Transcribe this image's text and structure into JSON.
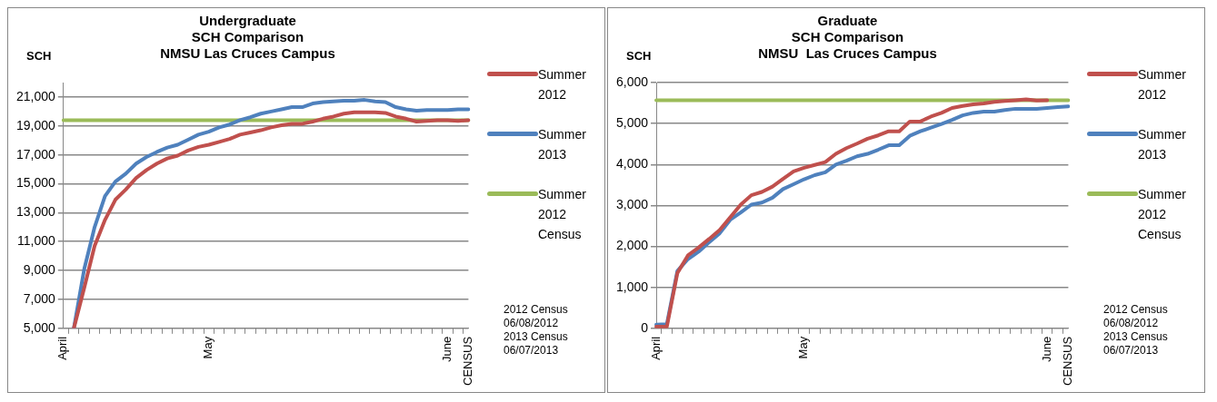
{
  "chart_data": [
    {
      "type": "line",
      "title": "Undergraduate\nSCH Comparison\nNMSU Las Cruces Campus",
      "ylabel": "SCH",
      "categories": [
        "April",
        null,
        null,
        null,
        null,
        null,
        null,
        null,
        null,
        null,
        null,
        null,
        null,
        null,
        "May",
        null,
        null,
        null,
        null,
        null,
        null,
        null,
        null,
        null,
        null,
        null,
        null,
        null,
        null,
        null,
        null,
        null,
        null,
        null,
        null,
        null,
        null,
        "June",
        null,
        "CENSUS"
      ],
      "series": [
        {
          "name": "Summer 2012",
          "color": "#c0504d",
          "values": [
            null,
            5000,
            7800,
            10700,
            12500,
            13900,
            14600,
            15400,
            15950,
            16400,
            16750,
            16950,
            17300,
            17550,
            17700,
            17900,
            18100,
            18400,
            18550,
            18700,
            18900,
            19050,
            19150,
            19150,
            19300,
            19500,
            19650,
            19850,
            19950,
            19950,
            19950,
            19900,
            19650,
            19500,
            19300,
            19350,
            19400,
            19400,
            19350,
            19400
          ]
        },
        {
          "name": "Summer 2013",
          "color": "#4f81bd",
          "values": [
            null,
            5000,
            9100,
            12000,
            14150,
            15150,
            15700,
            16400,
            16850,
            17200,
            17500,
            17700,
            18050,
            18400,
            18600,
            18900,
            19100,
            19400,
            19600,
            19850,
            20000,
            20150,
            20300,
            20300,
            20550,
            20650,
            20700,
            20750,
            20750,
            20800,
            20700,
            20650,
            20300,
            20150,
            20050,
            20100,
            20100,
            20100,
            20150,
            20150
          ]
        },
        {
          "name": "Summer 2012 Census",
          "color": "#9bbb59",
          "values": [
            19400,
            19400,
            19400,
            19400,
            19400,
            19400,
            19400,
            19400,
            19400,
            19400,
            19400,
            19400,
            19400,
            19400,
            19400,
            19400,
            19400,
            19400,
            19400,
            19400,
            19400,
            19400,
            19400,
            19400,
            19400,
            19400,
            19400,
            19400,
            19400,
            19400,
            19400,
            19400,
            19400,
            19400,
            19400,
            19400,
            19400,
            19400,
            19400,
            19400
          ]
        }
      ],
      "ylim": [
        5000,
        22000
      ],
      "yticks": [
        {
          "value": 5000,
          "label": "5,000"
        },
        {
          "value": 7000,
          "label": "7,000"
        },
        {
          "value": 9000,
          "label": "9,000"
        },
        {
          "value": 11000,
          "label": "11,000"
        },
        {
          "value": 13000,
          "label": "13,000"
        },
        {
          "value": 15000,
          "label": "15,000"
        },
        {
          "value": 17000,
          "label": "17,000"
        },
        {
          "value": 19000,
          "label": "19,000"
        },
        {
          "value": 21000,
          "label": "21,000"
        }
      ],
      "grid": "y",
      "legend": "right",
      "marker": "none",
      "line_style": "solid",
      "annotations": [
        "2012 Census",
        "06/08/2012",
        "2013 Census",
        "06/07/2013"
      ]
    },
    {
      "type": "line",
      "title": "Graduate\nSCH Comparison\nNMSU  Las Cruces Campus",
      "ylabel": "SCH",
      "categories": [
        "April",
        null,
        null,
        null,
        null,
        null,
        null,
        null,
        null,
        null,
        null,
        null,
        null,
        null,
        "May",
        null,
        null,
        null,
        null,
        null,
        null,
        null,
        null,
        null,
        null,
        null,
        null,
        null,
        null,
        null,
        null,
        null,
        null,
        null,
        null,
        null,
        null,
        "June",
        null,
        "CENSUS"
      ],
      "series": [
        {
          "name": "Summer 2012",
          "color": "#c0504d",
          "values": [
            40,
            40,
            1350,
            1780,
            1970,
            2180,
            2400,
            2710,
            3020,
            3250,
            3330,
            3460,
            3650,
            3830,
            3920,
            3990,
            4060,
            4260,
            4400,
            4510,
            4630,
            4710,
            4810,
            4810,
            5050,
            5050,
            5170,
            5260,
            5380,
            5430,
            5470,
            5490,
            5530,
            5550,
            5570,
            5590,
            5560,
            5570,
            null,
            null
          ]
        },
        {
          "name": "Summer 2013",
          "color": "#4f81bd",
          "values": [
            90,
            100,
            1400,
            1690,
            1870,
            2100,
            2320,
            2650,
            2830,
            3020,
            3070,
            3190,
            3400,
            3520,
            3640,
            3740,
            3810,
            4000,
            4090,
            4200,
            4260,
            4360,
            4470,
            4470,
            4700,
            4810,
            4900,
            4990,
            5090,
            5200,
            5260,
            5290,
            5290,
            5330,
            5360,
            5360,
            5360,
            5380,
            5400,
            5420
          ]
        },
        {
          "name": "Summer 2012 Census",
          "color": "#9bbb59",
          "values": [
            5570,
            5570,
            5570,
            5570,
            5570,
            5570,
            5570,
            5570,
            5570,
            5570,
            5570,
            5570,
            5570,
            5570,
            5570,
            5570,
            5570,
            5570,
            5570,
            5570,
            5570,
            5570,
            5570,
            5570,
            5570,
            5570,
            5570,
            5570,
            5570,
            5570,
            5570,
            5570,
            5570,
            5570,
            5570,
            5570,
            5570,
            5570,
            5570,
            5570
          ]
        }
      ],
      "ylim": [
        0,
        6000
      ],
      "yticks": [
        0,
        {
          "value": 1000,
          "label": "1,000"
        },
        {
          "value": 2000,
          "label": "2,000"
        },
        {
          "value": 3000,
          "label": "3,000"
        },
        {
          "value": 4000,
          "label": "4,000"
        },
        {
          "value": 5000,
          "label": "5,000"
        },
        {
          "value": 6000,
          "label": "6,000"
        }
      ],
      "grid": "y",
      "legend": "right",
      "marker": "none",
      "line_style": "solid",
      "annotations": [
        "2012 Census",
        "06/08/2012",
        "2013 Census",
        "06/07/2013"
      ]
    }
  ]
}
